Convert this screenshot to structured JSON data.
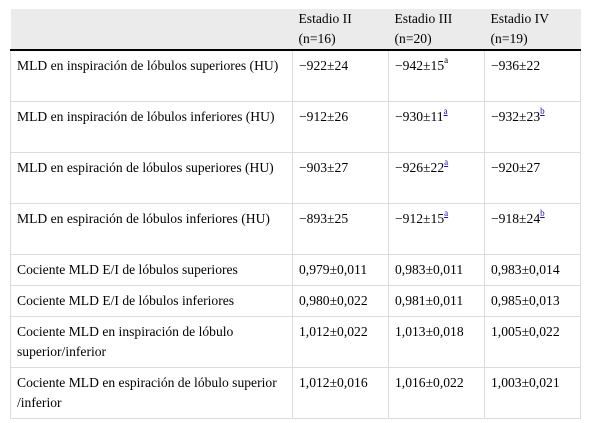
{
  "header": {
    "cols": [
      {
        "line1": "Estadio II",
        "line2": "(n=16)"
      },
      {
        "line1": "Estadio III",
        "line2": "(n=20)"
      },
      {
        "line1": "Estadio IV",
        "line2": "(n=19)"
      }
    ]
  },
  "rows": [
    {
      "label": "MLD en inspiración de lóbulos superiores (HU)",
      "v": [
        "−922±24",
        "−942±15",
        "−936±22"
      ],
      "sup": [
        "",
        "a",
        ""
      ]
    },
    {
      "label": "MLD en inspiración de lóbulos inferiores (HU)",
      "v": [
        "−912±26",
        "−930±11",
        "−932±23"
      ],
      "sup": [
        "",
        "a",
        "b"
      ]
    },
    {
      "label": "MLD en espiración de lóbulos superiores (HU)",
      "v": [
        "−903±27",
        "−926±22",
        "−920±27"
      ],
      "sup": [
        "",
        "a",
        ""
      ]
    },
    {
      "label": "MLD en espiración de lóbulos inferiores (HU)",
      "v": [
        "−893±25",
        "−912±15",
        "−918±24"
      ],
      "sup": [
        "",
        "a",
        "b"
      ]
    },
    {
      "label": "Cociente MLD E/I de lóbulos superiores",
      "v": [
        "0,979±0,011",
        "0,983±0,011",
        "0,983±0,014"
      ],
      "sup": [
        "",
        "",
        ""
      ]
    },
    {
      "label": "Cociente MLD E/I de lóbulos inferiores",
      "v": [
        "0,980±0,022",
        "0,981±0,011",
        "0,985±0,013"
      ],
      "sup": [
        "",
        "",
        ""
      ]
    },
    {
      "label": "Cociente MLD en inspiración de lóbulo superior/inferior",
      "v": [
        "1,012±0,022",
        "1,013±0,018",
        "1,005±0,022"
      ],
      "sup": [
        "",
        "",
        ""
      ]
    },
    {
      "label": "Cociente MLD en espiración de lóbulo superior /inferior",
      "v": [
        "1,012±0,016",
        "1,016±0,022",
        "1,003±0,021"
      ],
      "sup": [
        "",
        "",
        ""
      ]
    }
  ]
}
